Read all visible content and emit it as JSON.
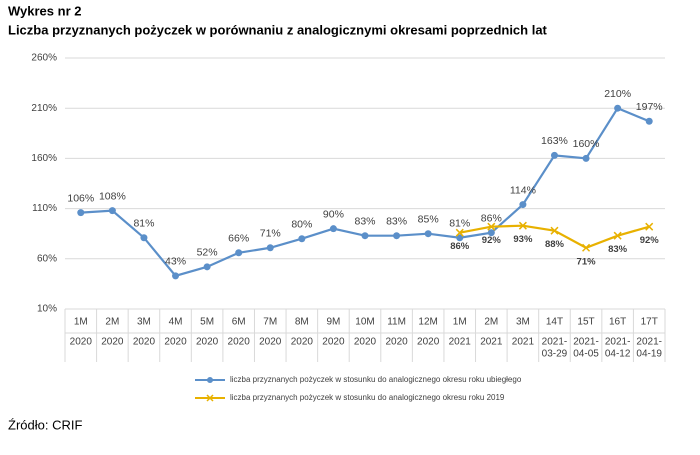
{
  "chart_data": {
    "type": "line",
    "title": "Wykres nr 2",
    "subtitle": "Liczba przyznanych pożyczek w porównaniu z analogicznymi okresami poprzednich lat",
    "source": "Źródło: CRIF",
    "categories": [
      [
        "1M",
        "2020"
      ],
      [
        "2M",
        "2020"
      ],
      [
        "3M",
        "2020"
      ],
      [
        "4M",
        "2020"
      ],
      [
        "5M",
        "2020"
      ],
      [
        "6M",
        "2020"
      ],
      [
        "7M",
        "2020"
      ],
      [
        "8M",
        "2020"
      ],
      [
        "9M",
        "2020"
      ],
      [
        "10M",
        "2020"
      ],
      [
        "11M",
        "2020"
      ],
      [
        "12M",
        "2020"
      ],
      [
        "1M",
        "2021"
      ],
      [
        "2M",
        "2021"
      ],
      [
        "3M",
        "2021"
      ],
      [
        "14T",
        "2021-",
        "03-29"
      ],
      [
        "15T",
        "2021-",
        "04-05"
      ],
      [
        "16T",
        "2021-",
        "04-12"
      ],
      [
        "17T",
        "2021-",
        "04-19"
      ]
    ],
    "series": [
      {
        "name": "liczba przyznanych pożyczek w stosunku do analogicznego okresu roku ubiegłego",
        "color": "#5b8fc9",
        "marker": "circle",
        "label_position": "above",
        "values": [
          106,
          108,
          81,
          43,
          52,
          66,
          71,
          80,
          90,
          83,
          83,
          85,
          81,
          86,
          114,
          163,
          160,
          210,
          197
        ],
        "value_labels": [
          "106%",
          "108%",
          "81%",
          "43%",
          "52%",
          "66%",
          "71%",
          "80%",
          "90%",
          "83%",
          "83%",
          "85%",
          "81%",
          "86%",
          "114%",
          "163%",
          "160%",
          "210%",
          "197%"
        ]
      },
      {
        "name": "liczba przyznanych pożyczek w stosunku do analogicznego okresu roku 2019",
        "color": "#e8b100",
        "marker": "x",
        "label_position": "below",
        "values": [
          null,
          null,
          null,
          null,
          null,
          null,
          null,
          null,
          null,
          null,
          null,
          null,
          86,
          92,
          93,
          88,
          71,
          83,
          92
        ],
        "value_labels": [
          null,
          null,
          null,
          null,
          null,
          null,
          null,
          null,
          null,
          null,
          null,
          null,
          "86%",
          "92%",
          "93%",
          "88%",
          "71%",
          "83%",
          "92%"
        ]
      }
    ],
    "ylim": [
      10,
      260
    ],
    "yticks": [
      {
        "value": 10,
        "label": "10%"
      },
      {
        "value": 60,
        "label": "60%"
      },
      {
        "value": 110,
        "label": "110%"
      },
      {
        "value": 160,
        "label": "160%"
      },
      {
        "value": 210,
        "label": "210%"
      },
      {
        "value": 260,
        "label": "260%"
      }
    ],
    "grid": true,
    "legend": "bottom"
  }
}
